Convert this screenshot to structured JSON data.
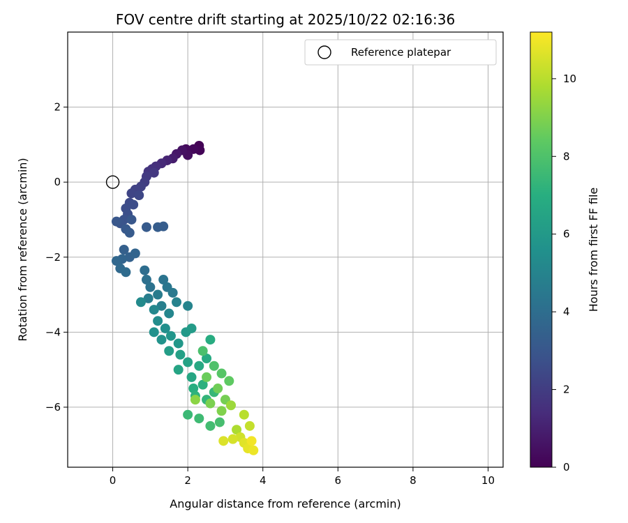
{
  "chart_data": {
    "type": "scatter",
    "title": "FOV centre drift starting at 2025/10/22 02:16:36",
    "xlabel": "Angular distance from reference (arcmin)",
    "ylabel": "Rotation from reference (arcmin)",
    "xlim": [
      -1.2,
      10.4
    ],
    "ylim": [
      -7.6,
      4.0
    ],
    "xticks": [
      0,
      2,
      4,
      6,
      8,
      10
    ],
    "yticks": [
      -6,
      -4,
      -2,
      0,
      2
    ],
    "grid": true,
    "legend": {
      "position": "top-right",
      "label": "Reference platepar"
    },
    "reference_point": {
      "x": 0,
      "y": 0
    },
    "colorbar": {
      "label": "Hours from first FF file",
      "min": 0,
      "max": 11.2,
      "ticks": [
        0,
        2,
        4,
        6,
        8,
        10
      ],
      "colormap": "viridis"
    },
    "series": [
      {
        "points": [
          [
            2.3,
            0.97,
            0.05
          ],
          [
            2.32,
            0.85,
            0.1
          ],
          [
            2.15,
            0.88,
            0.2
          ],
          [
            1.95,
            0.88,
            0.3
          ],
          [
            2.0,
            0.72,
            0.4
          ],
          [
            1.85,
            0.85,
            0.5
          ],
          [
            1.7,
            0.75,
            0.7
          ],
          [
            1.6,
            0.63,
            0.9
          ],
          [
            1.45,
            0.58,
            1.1
          ],
          [
            1.3,
            0.5,
            1.3
          ],
          [
            1.15,
            0.42,
            1.5
          ],
          [
            1.05,
            0.35,
            1.6
          ],
          [
            0.95,
            0.28,
            1.7
          ],
          [
            1.1,
            0.25,
            1.8
          ],
          [
            0.9,
            0.15,
            1.9
          ],
          [
            0.85,
            0.0,
            2.0
          ],
          [
            0.75,
            -0.12,
            2.1
          ],
          [
            0.6,
            -0.2,
            2.2
          ],
          [
            0.5,
            -0.3,
            2.3
          ],
          [
            0.7,
            -0.35,
            2.4
          ],
          [
            0.45,
            -0.55,
            2.5
          ],
          [
            0.35,
            -0.7,
            2.6
          ],
          [
            0.55,
            -0.6,
            2.6
          ],
          [
            0.4,
            -0.85,
            2.7
          ],
          [
            0.3,
            -1.0,
            2.8
          ],
          [
            0.2,
            -1.1,
            2.9
          ],
          [
            0.1,
            -1.05,
            3.0
          ],
          [
            0.5,
            -1.0,
            3.0
          ],
          [
            0.35,
            -1.25,
            3.1
          ],
          [
            0.45,
            -1.35,
            3.2
          ],
          [
            0.9,
            -1.2,
            3.2
          ],
          [
            1.2,
            -1.2,
            3.3
          ],
          [
            1.35,
            -1.18,
            3.3
          ],
          [
            0.3,
            -1.8,
            3.4
          ],
          [
            0.45,
            -2.0,
            3.5
          ],
          [
            0.25,
            -2.05,
            3.6
          ],
          [
            0.6,
            -1.9,
            3.6
          ],
          [
            0.1,
            -2.1,
            3.7
          ],
          [
            0.2,
            -2.3,
            3.8
          ],
          [
            0.35,
            -2.4,
            3.9
          ],
          [
            0.85,
            -2.35,
            4.0
          ],
          [
            0.9,
            -2.6,
            4.1
          ],
          [
            1.0,
            -2.8,
            4.2
          ],
          [
            1.35,
            -2.6,
            4.3
          ],
          [
            1.45,
            -2.8,
            4.4
          ],
          [
            1.6,
            -2.95,
            4.5
          ],
          [
            1.2,
            -3.0,
            4.6
          ],
          [
            0.95,
            -3.1,
            4.7
          ],
          [
            1.3,
            -3.3,
            4.8
          ],
          [
            1.7,
            -3.2,
            4.9
          ],
          [
            2.0,
            -3.3,
            5.0
          ],
          [
            1.5,
            -3.5,
            5.1
          ],
          [
            1.1,
            -3.4,
            5.2
          ],
          [
            0.75,
            -3.2,
            5.3
          ],
          [
            1.2,
            -3.7,
            5.4
          ],
          [
            1.4,
            -3.9,
            5.5
          ],
          [
            1.1,
            -4.0,
            5.6
          ],
          [
            1.3,
            -4.2,
            5.7
          ],
          [
            1.55,
            -4.1,
            5.8
          ],
          [
            1.75,
            -4.3,
            5.9
          ],
          [
            1.95,
            -4.0,
            6.0
          ],
          [
            2.1,
            -3.9,
            6.1
          ],
          [
            1.5,
            -4.5,
            6.2
          ],
          [
            1.8,
            -4.6,
            6.3
          ],
          [
            2.0,
            -4.8,
            6.4
          ],
          [
            1.75,
            -5.0,
            6.5
          ],
          [
            2.1,
            -5.2,
            6.6
          ],
          [
            2.3,
            -4.9,
            6.7
          ],
          [
            2.5,
            -4.7,
            6.8
          ],
          [
            2.6,
            -4.2,
            6.9
          ],
          [
            2.15,
            -5.5,
            7.0
          ],
          [
            2.4,
            -5.4,
            7.1
          ],
          [
            2.2,
            -5.7,
            7.2
          ],
          [
            2.5,
            -5.8,
            7.3
          ],
          [
            2.7,
            -5.6,
            7.4
          ],
          [
            2.0,
            -6.2,
            7.5
          ],
          [
            2.3,
            -6.3,
            7.6
          ],
          [
            2.6,
            -6.5,
            7.7
          ],
          [
            2.85,
            -6.4,
            7.8
          ],
          [
            2.4,
            -4.5,
            7.9
          ],
          [
            2.7,
            -4.9,
            8.0
          ],
          [
            2.9,
            -5.1,
            8.2
          ],
          [
            3.1,
            -5.3,
            8.4
          ],
          [
            2.5,
            -5.2,
            8.6
          ],
          [
            2.8,
            -5.5,
            8.7
          ],
          [
            3.0,
            -5.8,
            8.8
          ],
          [
            2.6,
            -5.9,
            8.9
          ],
          [
            2.9,
            -6.1,
            9.0
          ],
          [
            2.2,
            -5.8,
            9.2
          ],
          [
            3.15,
            -5.95,
            9.5
          ],
          [
            3.3,
            -6.6,
            9.8
          ],
          [
            3.5,
            -6.2,
            10.0
          ],
          [
            3.65,
            -6.5,
            10.2
          ],
          [
            3.4,
            -6.8,
            10.4
          ],
          [
            3.2,
            -6.85,
            10.5
          ],
          [
            2.95,
            -6.9,
            10.6
          ],
          [
            3.5,
            -6.95,
            10.7
          ],
          [
            3.6,
            -7.1,
            10.8
          ],
          [
            3.75,
            -7.15,
            10.9
          ],
          [
            3.7,
            -6.9,
            11.0
          ]
        ]
      }
    ]
  }
}
